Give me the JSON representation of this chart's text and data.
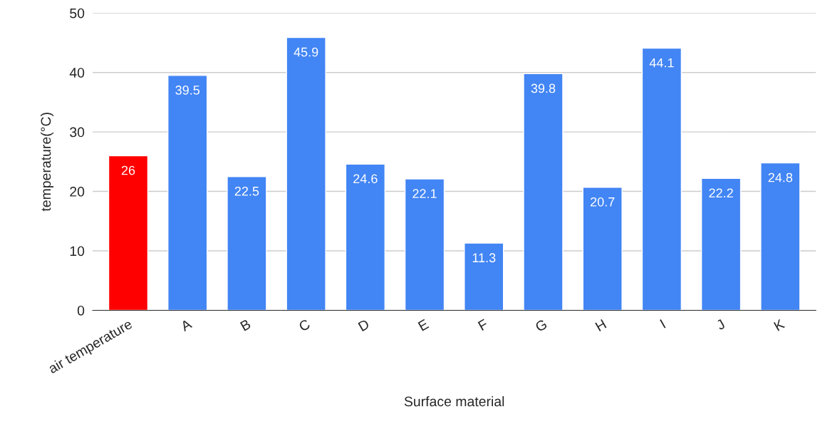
{
  "chart_data": {
    "type": "bar",
    "xlabel": "Surface material",
    "ylabel": "temperature(°C)",
    "categories": [
      "air temperature",
      "A",
      "B",
      "C",
      "D",
      "E",
      "F",
      "G",
      "H",
      "I",
      "J",
      "K"
    ],
    "values": [
      26,
      39.5,
      22.5,
      45.9,
      24.6,
      22.1,
      11.3,
      39.8,
      20.7,
      44.1,
      22.2,
      24.8
    ],
    "colors": [
      "#ff0000",
      "#4285f4",
      "#4285f4",
      "#4285f4",
      "#4285f4",
      "#4285f4",
      "#4285f4",
      "#4285f4",
      "#4285f4",
      "#4285f4",
      "#4285f4",
      "#4285f4"
    ],
    "ylim": [
      0,
      50
    ],
    "yticks": [
      0,
      10,
      20,
      30,
      40,
      50
    ],
    "grid": "y",
    "data_labels": true,
    "legend": false
  }
}
